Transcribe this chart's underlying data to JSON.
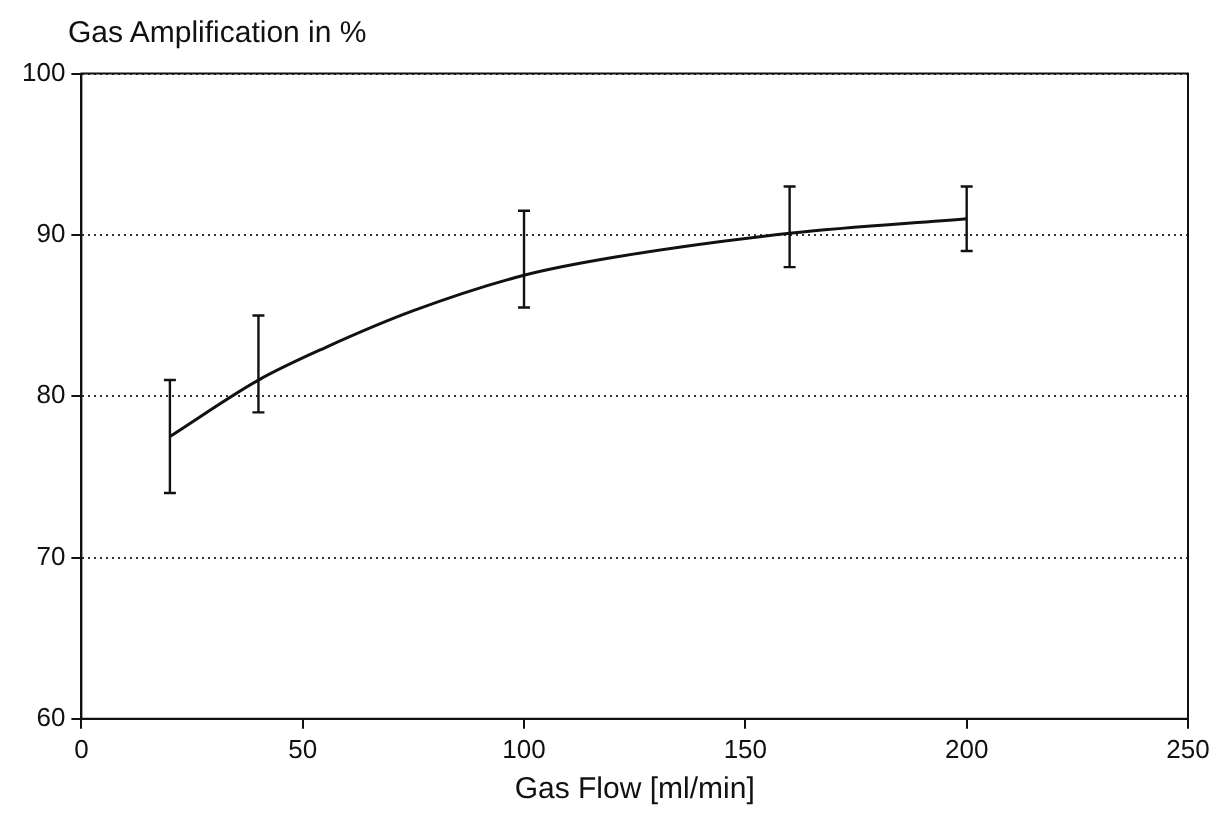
{
  "chart_data": {
    "type": "line",
    "ylabel": "Gas Amplification in %",
    "xlabel": "Gas Flow [ml/min]",
    "x": [
      20,
      40,
      55,
      75,
      100,
      120,
      160,
      200
    ],
    "series": [
      {
        "color": "#111111",
        "values": [
          77.5,
          81,
          83,
          85.3,
          87.5,
          88.6,
          90.1,
          91
        ],
        "errors": [
          [
            74,
            81
          ],
          [
            79,
            85
          ],
          null,
          null,
          [
            85.5,
            91.5
          ],
          null,
          [
            88,
            93
          ],
          [
            89,
            93
          ]
        ]
      }
    ],
    "xlim": [
      0,
      250
    ],
    "xticks": [
      0,
      50,
      100,
      150,
      200,
      250
    ],
    "ylim": [
      60,
      100
    ],
    "yticks": [
      60,
      70,
      80,
      90,
      100
    ],
    "grid": "y",
    "marker": "none",
    "line_style": "solid",
    "legend": false
  }
}
